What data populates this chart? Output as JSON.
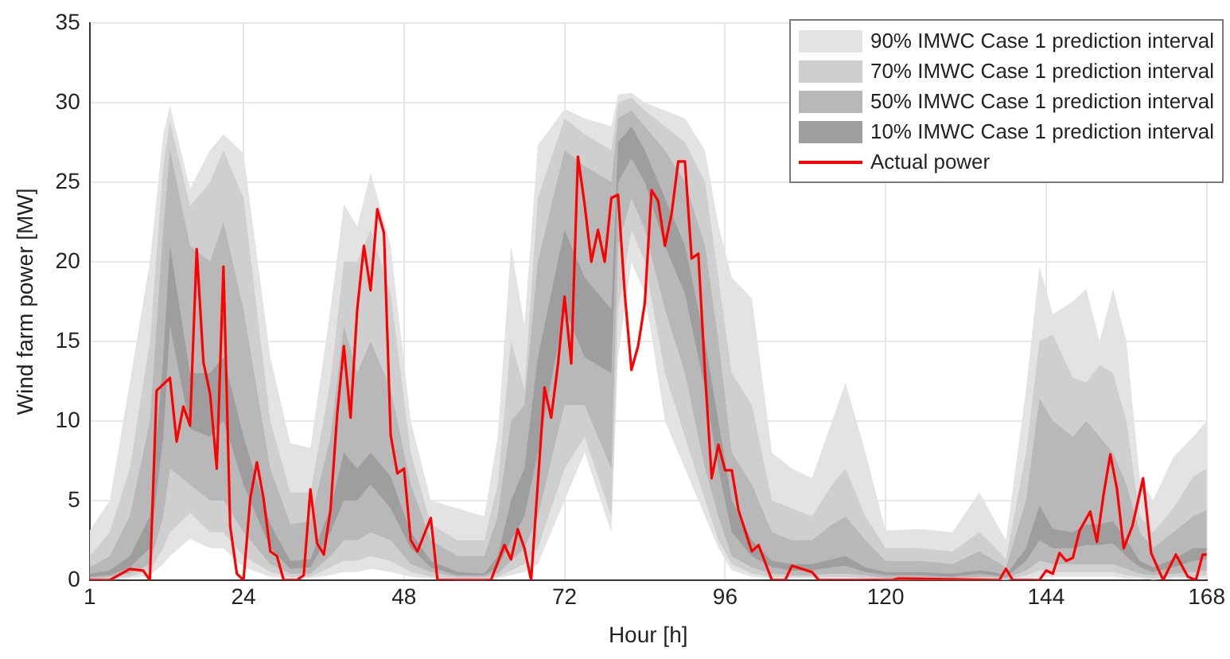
{
  "chart_data": {
    "type": "line",
    "xlabel": "Hour [h]",
    "ylabel": "Wind farm power [MW]",
    "x": [
      1,
      4,
      7,
      10,
      12,
      13,
      16,
      19,
      21,
      24,
      28,
      31,
      34,
      37,
      39,
      41,
      43,
      46,
      49,
      52,
      56,
      60,
      62,
      64,
      66,
      68,
      72,
      75,
      79,
      80,
      82,
      84,
      87,
      90,
      93,
      95,
      97,
      100,
      103,
      106,
      109,
      112,
      114,
      117,
      120,
      125,
      130,
      134,
      136,
      138,
      141,
      143,
      145,
      148,
      150,
      152,
      154,
      156,
      158,
      160,
      163,
      166,
      168
    ],
    "xlim": [
      1,
      168
    ],
    "xticks": [
      1,
      24,
      48,
      72,
      96,
      120,
      144,
      168
    ],
    "ylim": [
      0,
      35
    ],
    "yticks": [
      0,
      5,
      10,
      15,
      20,
      25,
      30,
      35
    ],
    "grid": true,
    "legend": "top right",
    "series": [
      {
        "name": "90% IMWC Case 1 prediction interval",
        "color": "#e3e3e3",
        "values": [
          null,
          null,
          null,
          null,
          null,
          null,
          null,
          null,
          null,
          null,
          null,
          null,
          null,
          null,
          null,
          null,
          null,
          null,
          null,
          null,
          null,
          null,
          null,
          null,
          null,
          null,
          null,
          null,
          null,
          null,
          null,
          null,
          null,
          null,
          null,
          null,
          null,
          null,
          null,
          null,
          null,
          null,
          null,
          null,
          null,
          null,
          null,
          null,
          null,
          null,
          null,
          null,
          null,
          null,
          null,
          null,
          null,
          null,
          null,
          null,
          null,
          null,
          null
        ],
        "lower": [
          0,
          0,
          0.1,
          0.3,
          1,
          1.5,
          2.6,
          2,
          2,
          0.8,
          0.2,
          0.1,
          0.1,
          0.3,
          0.5,
          0.5,
          0.7,
          0.5,
          0.2,
          0.1,
          0,
          0,
          0.1,
          0.3,
          0.5,
          1,
          5,
          8,
          3,
          14,
          20,
          18,
          10,
          7,
          4,
          2,
          0.6,
          0.2,
          0.1,
          0.1,
          0.1,
          0.1,
          0.1,
          0.1,
          0,
          0,
          0,
          0,
          0,
          0,
          0.1,
          0.2,
          0.2,
          0.2,
          0.2,
          0.2,
          0.2,
          0.1,
          0.1,
          0,
          0.1,
          0.1,
          0.1
        ],
        "upper": [
          3.1,
          5,
          12.4,
          20,
          28,
          29.8,
          24.6,
          27,
          28,
          26.8,
          14,
          8.6,
          8.3,
          17,
          23.6,
          22.2,
          25.6,
          21,
          10,
          5,
          4.5,
          4,
          9,
          21,
          16,
          27.3,
          29.6,
          29,
          28.5,
          30.5,
          30.6,
          30,
          29.5,
          29,
          27,
          22.3,
          19,
          17.7,
          8,
          7,
          6.4,
          10,
          12.4,
          8,
          3.1,
          3.2,
          3,
          5.5,
          4,
          2.5,
          12,
          19.7,
          16.7,
          17.5,
          18.3,
          15,
          18.3,
          15,
          6.4,
          5,
          7.7,
          9,
          10
        ]
      },
      {
        "name": "70% IMWC Case 1 prediction interval",
        "color": "#cfcfcf",
        "values": [
          null,
          null,
          null,
          null,
          null,
          null,
          null,
          null,
          null,
          null,
          null,
          null,
          null,
          null,
          null,
          null,
          null,
          null,
          null,
          null,
          null,
          null,
          null,
          null,
          null,
          null,
          null,
          null,
          null,
          null,
          null,
          null,
          null,
          null,
          null,
          null,
          null,
          null,
          null,
          null,
          null,
          null,
          null,
          null,
          null,
          null,
          null,
          null,
          null,
          null,
          null,
          null,
          null,
          null,
          null,
          null,
          null,
          null,
          null,
          null,
          null,
          null,
          null
        ],
        "lower": [
          0,
          0.1,
          0.2,
          0.6,
          2,
          3,
          4.2,
          3,
          3,
          1.5,
          0.5,
          0.2,
          0.2,
          0.8,
          1.2,
          1.2,
          1.5,
          1.2,
          0.5,
          0.2,
          0.1,
          0.1,
          0.2,
          0.6,
          1,
          2,
          7,
          9,
          4,
          17,
          22,
          20,
          13,
          9,
          5,
          2.5,
          1,
          0.4,
          0.2,
          0.2,
          0.2,
          0.2,
          0.2,
          0.1,
          0.1,
          0.1,
          0.1,
          0.1,
          0.1,
          0,
          0.3,
          0.6,
          0.5,
          0.5,
          0.5,
          0.5,
          0.5,
          0.3,
          0.2,
          0.1,
          0.2,
          0.2,
          0.3
        ],
        "upper": [
          1.5,
          3,
          7,
          15,
          26,
          28.8,
          23.5,
          25,
          27,
          24,
          10,
          5.5,
          5.5,
          12.5,
          20,
          20,
          22,
          18,
          8,
          3.5,
          2.5,
          2.5,
          6,
          15,
          12,
          24,
          29,
          28,
          27,
          30,
          30.3,
          29.5,
          28.5,
          27.5,
          25,
          19,
          13,
          11,
          5,
          4.5,
          4,
          6,
          7,
          4,
          2,
          2,
          1.8,
          3,
          2.2,
          1.3,
          8,
          15,
          15.4,
          12.7,
          12.4,
          13.5,
          13,
          10,
          4,
          3,
          4.5,
          6.5,
          7
        ]
      },
      {
        "name": "50% IMWC Case 1 prediction interval",
        "color": "#b8b8b8",
        "values": [
          null,
          null,
          null,
          null,
          null,
          null,
          null,
          null,
          null,
          null,
          null,
          null,
          null,
          null,
          null,
          null,
          null,
          null,
          null,
          null,
          null,
          null,
          null,
          null,
          null,
          null,
          null,
          null,
          null,
          null,
          null,
          null,
          null,
          null,
          null,
          null,
          null,
          null,
          null,
          null,
          null,
          null,
          null,
          null,
          null,
          null,
          null,
          null,
          null,
          null,
          null,
          null,
          null,
          null,
          null,
          null,
          null,
          null,
          null,
          null,
          null,
          null,
          null
        ],
        "lower": [
          0.1,
          0.2,
          0.4,
          1,
          4,
          7,
          6,
          5,
          5,
          3,
          1,
          0.4,
          0.4,
          1.5,
          2.5,
          2.5,
          3,
          2.5,
          1,
          0.5,
          0.2,
          0.2,
          0.4,
          1.2,
          2,
          4,
          11,
          11,
          7,
          21,
          24,
          22,
          17,
          13,
          7,
          4,
          1.5,
          0.8,
          0.4,
          0.3,
          0.3,
          0.4,
          0.4,
          0.3,
          0.1,
          0.1,
          0.1,
          0.2,
          0.2,
          0.1,
          0.6,
          1.2,
          1,
          1,
          1,
          1,
          1,
          0.7,
          0.4,
          0.3,
          0.4,
          0.5,
          0.6
        ],
        "upper": [
          0.8,
          1.5,
          4,
          10,
          22,
          27,
          21,
          20,
          22.5,
          17,
          7,
          3.5,
          3.7,
          9,
          16,
          13,
          15,
          12,
          6,
          2.5,
          1.5,
          1.5,
          4,
          10,
          11,
          20,
          27,
          26,
          25,
          29,
          29.5,
          28.5,
          27,
          25,
          21,
          15,
          8,
          6,
          3,
          2.5,
          2.5,
          3.5,
          4,
          2.5,
          1.2,
          1.2,
          1,
          1.8,
          1.3,
          0.8,
          5,
          11.4,
          10,
          9,
          10,
          9,
          8,
          6,
          3,
          2,
          3,
          4,
          4.4
        ]
      },
      {
        "name": "10% IMWC Case 1 prediction interval",
        "color": "#9e9e9e",
        "values": [
          null,
          null,
          null,
          null,
          null,
          null,
          null,
          null,
          null,
          null,
          null,
          null,
          null,
          null,
          null,
          null,
          null,
          null,
          null,
          null,
          null,
          null,
          null,
          null,
          null,
          null,
          null,
          null,
          null,
          null,
          null,
          null,
          null,
          null,
          null,
          null,
          null,
          null,
          null,
          null,
          null,
          null,
          null,
          null,
          null,
          null,
          null,
          null,
          null,
          null,
          null,
          null,
          null,
          null,
          null,
          null,
          null,
          null,
          null,
          null,
          null,
          null,
          null
        ],
        "lower": [
          0.2,
          0.3,
          0.8,
          2,
          9,
          16,
          9.5,
          9,
          10,
          6,
          2,
          0.7,
          0.8,
          3,
          5,
          5,
          6,
          4.5,
          2,
          0.8,
          0.3,
          0.3,
          0.8,
          2.5,
          4,
          8,
          17,
          14,
          13,
          25,
          26.5,
          25,
          21,
          18,
          12,
          7,
          3,
          1.5,
          0.8,
          0.6,
          0.6,
          0.8,
          0.9,
          0.5,
          0.3,
          0.3,
          0.2,
          0.4,
          0.3,
          0.2,
          1.2,
          2.5,
          2,
          2,
          2.2,
          2.2,
          2.3,
          1.5,
          0.8,
          0.5,
          0.8,
          1.2,
          1.3
        ],
        "upper": [
          0.4,
          0.6,
          1.5,
          4,
          14,
          21,
          13,
          13,
          14,
          9,
          3.5,
          1.2,
          1.3,
          4.5,
          8,
          7,
          8,
          6.5,
          3,
          1.2,
          0.5,
          0.4,
          1.5,
          5,
          7,
          14,
          22,
          19,
          17,
          27.5,
          28.5,
          27,
          24,
          21,
          15,
          10,
          5,
          2.5,
          1.2,
          1,
          1,
          1.3,
          1.5,
          0.8,
          0.5,
          0.5,
          0.4,
          0.6,
          0.5,
          0.3,
          2,
          4.7,
          3.2,
          3,
          3.5,
          3.5,
          3.7,
          2.5,
          1.2,
          0.8,
          1.3,
          2,
          2
        ]
      },
      {
        "name": "Actual power",
        "color": "#ff0000",
        "x": [
          1,
          4,
          7,
          9,
          10,
          11,
          13,
          14,
          15,
          16,
          17,
          18,
          19,
          20,
          21,
          22,
          23,
          24,
          25,
          26,
          27,
          28,
          29,
          30,
          32,
          33,
          34,
          35,
          36,
          37,
          38,
          39,
          40,
          41,
          42,
          43,
          44,
          45,
          46,
          47,
          48,
          49,
          50,
          52,
          53,
          61,
          63,
          64,
          65,
          66,
          67,
          69,
          70,
          71,
          72,
          73,
          74,
          75,
          76,
          77,
          78,
          79,
          80,
          81,
          82,
          83,
          84,
          85,
          86,
          87,
          88,
          89,
          90,
          91,
          92,
          93,
          94,
          95,
          96,
          97,
          98,
          100,
          101,
          103,
          105,
          106,
          109,
          110,
          121,
          122,
          137,
          138,
          139,
          143,
          144,
          145,
          146,
          147,
          148,
          149,
          150.6,
          151.6,
          152.6,
          153.6,
          154.6,
          155.6,
          156.9,
          158.5,
          159.7,
          161.5,
          163.4,
          165.2,
          166.4,
          167.4,
          168
        ],
        "values": [
          0,
          0,
          0.7,
          0.6,
          0,
          11.9,
          12.7,
          8.7,
          10.9,
          9.7,
          20.8,
          13.7,
          11.7,
          7,
          19.7,
          3.4,
          0.4,
          0,
          5.1,
          7.4,
          5.1,
          1.8,
          1.5,
          0,
          0,
          0.3,
          5.7,
          2.3,
          1.6,
          4.4,
          10.4,
          14.7,
          10.2,
          17,
          21,
          18.2,
          23.3,
          21.8,
          9.1,
          6.7,
          7,
          2.5,
          1.8,
          3.9,
          0,
          0,
          2.2,
          1.3,
          3.2,
          2,
          0,
          12.1,
          10.2,
          13.5,
          17.8,
          13.6,
          26.6,
          23.6,
          20,
          22,
          20,
          24,
          24.2,
          18,
          13.2,
          14.7,
          17.4,
          24.5,
          23.8,
          21,
          23,
          26.3,
          26.3,
          20.2,
          20.5,
          13,
          6.4,
          8.5,
          6.9,
          6.9,
          4.4,
          1.8,
          2.2,
          0,
          0,
          0.9,
          0.5,
          0,
          0,
          0.1,
          0,
          0.7,
          0,
          0,
          0.6,
          0.4,
          1.7,
          1.2,
          1.4,
          3.1,
          4.3,
          2.4,
          5.4,
          7.9,
          5.7,
          2,
          3.4,
          6.4,
          1.7,
          0,
          1.6,
          0.2,
          0,
          1.6,
          1.6
        ]
      }
    ]
  }
}
